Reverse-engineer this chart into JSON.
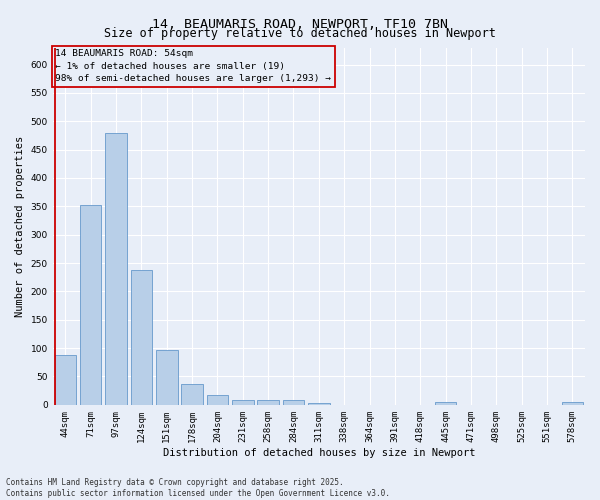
{
  "title1": "14, BEAUMARIS ROAD, NEWPORT, TF10 7BN",
  "title2": "Size of property relative to detached houses in Newport",
  "xlabel": "Distribution of detached houses by size in Newport",
  "ylabel": "Number of detached properties",
  "categories": [
    "44sqm",
    "71sqm",
    "97sqm",
    "124sqm",
    "151sqm",
    "178sqm",
    "204sqm",
    "231sqm",
    "258sqm",
    "284sqm",
    "311sqm",
    "338sqm",
    "364sqm",
    "391sqm",
    "418sqm",
    "445sqm",
    "471sqm",
    "498sqm",
    "525sqm",
    "551sqm",
    "578sqm"
  ],
  "values": [
    87,
    352,
    480,
    237,
    97,
    37,
    17,
    8,
    8,
    8,
    4,
    0,
    0,
    0,
    0,
    5,
    0,
    0,
    0,
    0,
    5
  ],
  "bar_color": "#b8cfe8",
  "bar_edge_color": "#6699cc",
  "bg_color": "#e8eef8",
  "grid_color": "#ffffff",
  "annotation_box_text": "14 BEAUMARIS ROAD: 54sqm\n← 1% of detached houses are smaller (19)\n98% of semi-detached houses are larger (1,293) →",
  "annotation_box_color": "#cc0000",
  "ylim_max": 630,
  "ylim_min": 0,
  "footer_text": "Contains HM Land Registry data © Crown copyright and database right 2025.\nContains public sector information licensed under the Open Government Licence v3.0.",
  "title_fontsize": 9.5,
  "subtitle_fontsize": 8.5,
  "tick_fontsize": 6.5,
  "axis_label_fontsize": 7.5,
  "annotation_fontsize": 6.8,
  "footer_fontsize": 5.5
}
